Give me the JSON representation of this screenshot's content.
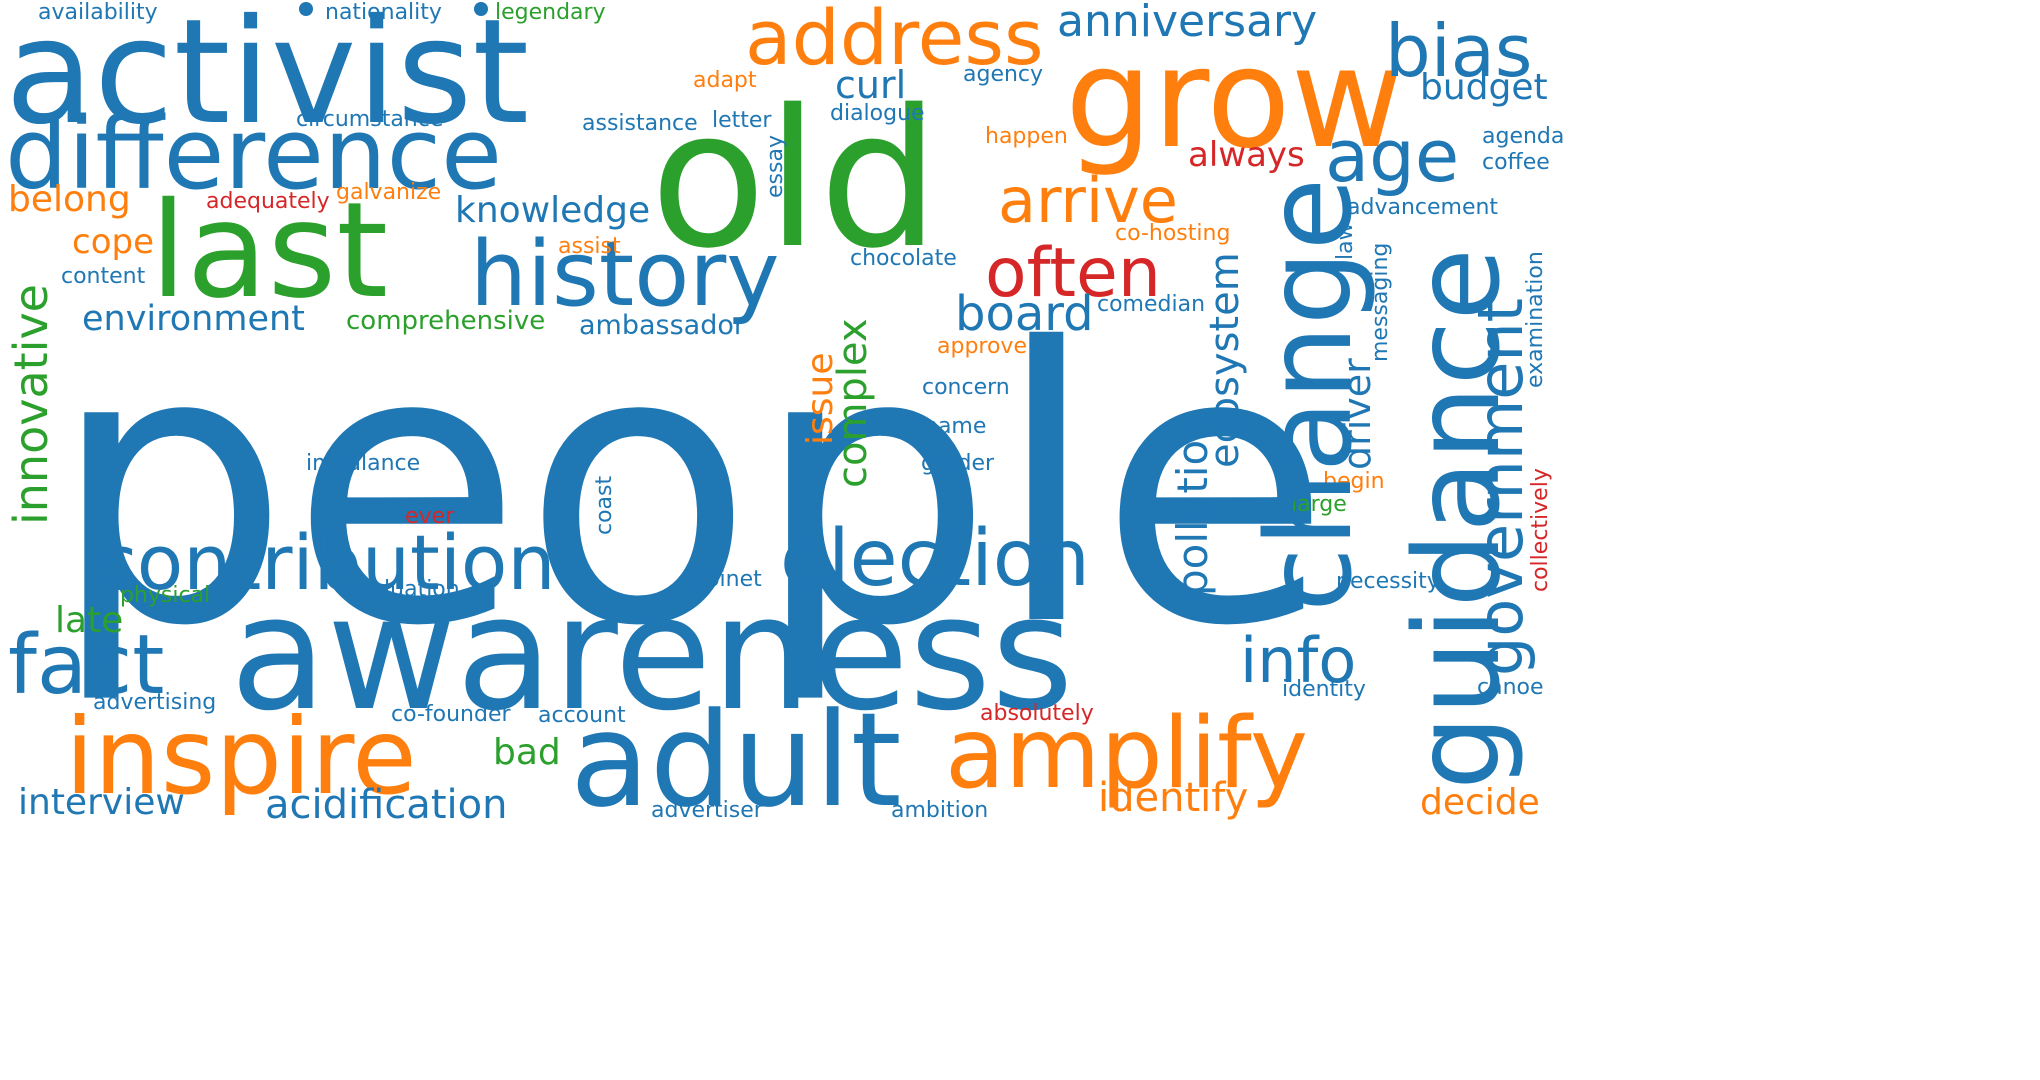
{
  "palette": {
    "blue": "#1f77b4",
    "orange": "#ff7f0e",
    "green": "#2ca02c",
    "red": "#d62728"
  },
  "words": {
    "people": "people",
    "awareness": "awareness",
    "old": "old",
    "activist": "activist",
    "grow": "grow",
    "last": "last",
    "difference": "difference",
    "change": "change",
    "guidance": "guidance",
    "address": "address",
    "history": "history",
    "inspire": "inspire",
    "adult": "adult",
    "election": "election",
    "contribution": "contribution",
    "amplify": "amplify",
    "fact": "fact",
    "often": "often",
    "age": "age",
    "bias": "bias",
    "government": "government",
    "arrive": "arrive",
    "anniversary": "anniversary",
    "info": "info",
    "board": "board",
    "innovative": "innovative",
    "pollution": "pollution",
    "acidification": "acidification",
    "knowledge": "knowledge",
    "environment": "environment",
    "ecosystem": "ecosystem",
    "complex": "complex",
    "interview": "interview",
    "identify": "identify",
    "decide": "decide",
    "driver": "driver",
    "always": "always",
    "issue": "issue",
    "curl": "curl",
    "budget": "budget",
    "belong": "belong",
    "cope": "cope",
    "late": "late",
    "bad": "bad",
    "comprehensive": "comprehensive",
    "ambassador": "ambassador",
    "chocolate": "chocolate",
    "availability": "availability",
    "nationality": "nationality",
    "legendary": "legendary",
    "adapt": "adapt",
    "agency": "agency",
    "circumstance": "circumstance",
    "dialogue": "dialogue",
    "assistance": "assistance",
    "letter": "letter",
    "essay": "essay",
    "happen": "happen",
    "agenda": "agenda",
    "coffee": "coffee",
    "adequately": "adequately",
    "galvanize": "galvanize",
    "advancement": "advancement",
    "assist": "assist",
    "co_hosting": "co-hosting",
    "content": "content",
    "law": "law",
    "messaging": "messaging",
    "examination": "examination",
    "comedian": "comedian",
    "approve": "approve",
    "concern": "concern",
    "name": "name",
    "imbalance": "imbalance",
    "grader": "grader",
    "collectively": "collectively",
    "begin": "begin",
    "large": "large",
    "ever": "ever",
    "coast": "coast",
    "cabinet": "cabinet",
    "necessity": "necessity",
    "physical": "physical",
    "evaluation": "evaluation",
    "advertising": "advertising",
    "co_founder": "co-founder",
    "account": "account",
    "absolutely": "absolutely",
    "identity": "identity",
    "canoe": "canoe",
    "advertiser": "advertiser",
    "ambition": "ambition"
  }
}
